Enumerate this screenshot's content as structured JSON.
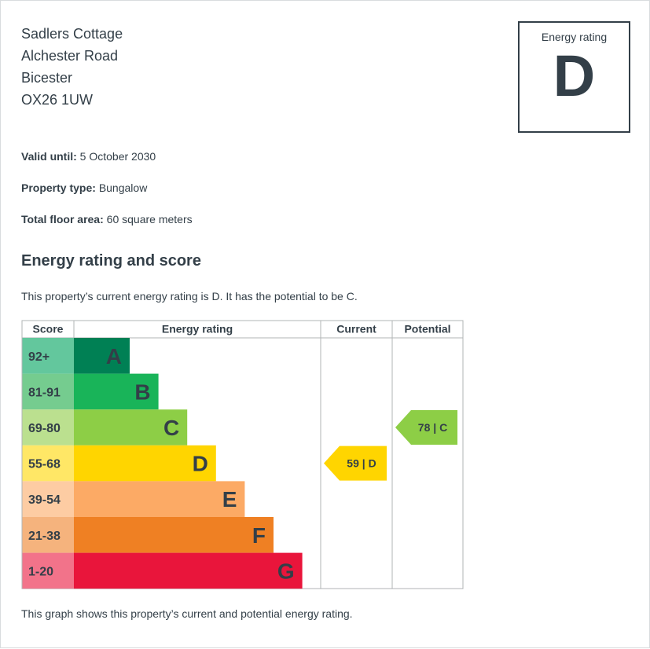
{
  "address": {
    "line1": "Sadlers Cottage",
    "line2": "Alchester Road",
    "line3": "Bicester",
    "postcode": "OX26 1UW"
  },
  "rating_badge": {
    "label": "Energy rating",
    "value": "D"
  },
  "details": {
    "valid_until_label": "Valid until:",
    "valid_until_value": "5 October 2030",
    "property_type_label": "Property type:",
    "property_type_value": "Bungalow",
    "floor_area_label": "Total floor area:",
    "floor_area_value": "60 square meters"
  },
  "section": {
    "heading": "Energy rating and score",
    "summary": "This property’s current energy rating is D. It has the potential to be C.",
    "footnote": "This graph shows this property’s current and potential energy rating."
  },
  "chart_data": {
    "type": "table",
    "headers": {
      "score": "Score",
      "rating": "Energy rating",
      "current": "Current",
      "potential": "Potential"
    },
    "bands": [
      {
        "letter": "A",
        "range": "92+",
        "color": "#008054",
        "score_color": "#63c79d"
      },
      {
        "letter": "B",
        "range": "81-91",
        "color": "#19b459",
        "score_color": "#75cc8f"
      },
      {
        "letter": "C",
        "range": "69-80",
        "color": "#8dce46",
        "score_color": "#bbe08f"
      },
      {
        "letter": "D",
        "range": "55-68",
        "color": "#ffd500",
        "score_color": "#ffe766"
      },
      {
        "letter": "E",
        "range": "39-54",
        "color": "#fcaa65",
        "score_color": "#fdcca3"
      },
      {
        "letter": "F",
        "range": "21-38",
        "color": "#ef8023",
        "score_color": "#f5b37d"
      },
      {
        "letter": "G",
        "range": "1-20",
        "color": "#e9153b",
        "score_color": "#f2738a"
      }
    ],
    "current": {
      "score": 59,
      "letter": "D",
      "label": "59 | D",
      "color": "#ffd500"
    },
    "potential": {
      "score": 78,
      "letter": "C",
      "label": "78 | C",
      "color": "#8dce46"
    }
  }
}
